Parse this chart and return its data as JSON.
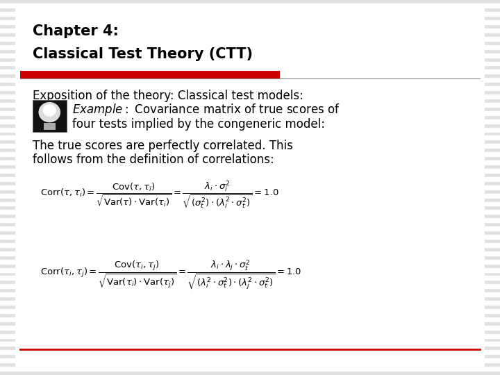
{
  "bg_color": "#d8d8d8",
  "slide_bg": "#ffffff",
  "title_line1": "Chapter 4:",
  "title_line2": "Classical Test Theory (CTT)",
  "title_color": "#000000",
  "title_fontsize": 15,
  "divider_color": "#cc0000",
  "text1": "Exposition of the theory: Classical test models:",
  "text1_fontsize": 12,
  "text2_fontsize": 12,
  "text3_fontsize": 12,
  "eq_fontsize": 9.5,
  "bottom_divider_color": "#cc0000",
  "stripe_color": "#c8c8c8",
  "stripe_bg": "#e0e0e0"
}
